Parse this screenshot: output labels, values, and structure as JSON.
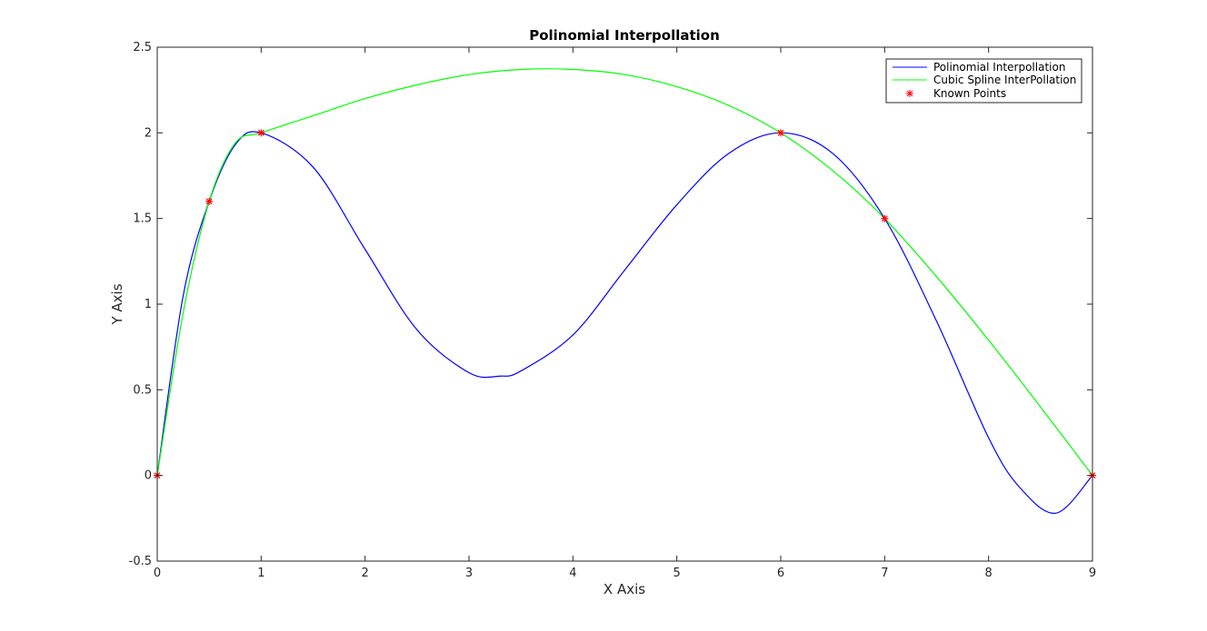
{
  "chart_data": {
    "type": "line",
    "title": "Polinomial Interpollation",
    "xlabel": "X Axis",
    "ylabel": "Y Axis",
    "xlim": [
      0,
      9
    ],
    "ylim": [
      -0.5,
      2.5
    ],
    "grid": false,
    "legend_placement": "top-right",
    "x_ticks": [
      "0",
      "1",
      "2",
      "3",
      "4",
      "5",
      "6",
      "7",
      "8",
      "9"
    ],
    "y_ticks": [
      "-0.5",
      "0",
      "0.5",
      "1",
      "1.5",
      "2",
      "2.5"
    ],
    "series": [
      {
        "name": "Polinomial Interpollation",
        "color": "#0000ff",
        "x": [
          0,
          0.25,
          0.5,
          0.75,
          1,
          1.5,
          2,
          2.5,
          3,
          3.3,
          3.5,
          4,
          4.5,
          5,
          5.5,
          6,
          6.5,
          7,
          7.5,
          8,
          8.3,
          8.65,
          9
        ],
        "y": [
          0,
          1.05,
          1.6,
          1.93,
          2.0,
          1.8,
          1.32,
          0.85,
          0.6,
          0.58,
          0.61,
          0.82,
          1.2,
          1.58,
          1.88,
          2.0,
          1.88,
          1.5,
          0.9,
          0.22,
          -0.07,
          -0.22,
          0
        ]
      },
      {
        "name": "Cubic Spline InterPollation",
        "color": "#00ff00",
        "x": [
          0,
          0.25,
          0.5,
          0.75,
          1,
          1.5,
          2,
          2.5,
          3,
          3.5,
          4,
          4.5,
          5,
          5.5,
          6,
          6.5,
          7,
          7.5,
          8,
          8.5,
          9
        ],
        "y": [
          0,
          0.95,
          1.6,
          1.94,
          2.0,
          2.1,
          2.2,
          2.28,
          2.34,
          2.37,
          2.37,
          2.34,
          2.27,
          2.16,
          2.0,
          1.78,
          1.5,
          1.16,
          0.79,
          0.4,
          0
        ]
      },
      {
        "name": "Known Points",
        "color": "#ff0000",
        "marker": "asterisk",
        "x": [
          0,
          0.5,
          1,
          6,
          7,
          9
        ],
        "y": [
          0,
          1.6,
          2.0,
          2.0,
          1.5,
          0
        ]
      }
    ]
  }
}
